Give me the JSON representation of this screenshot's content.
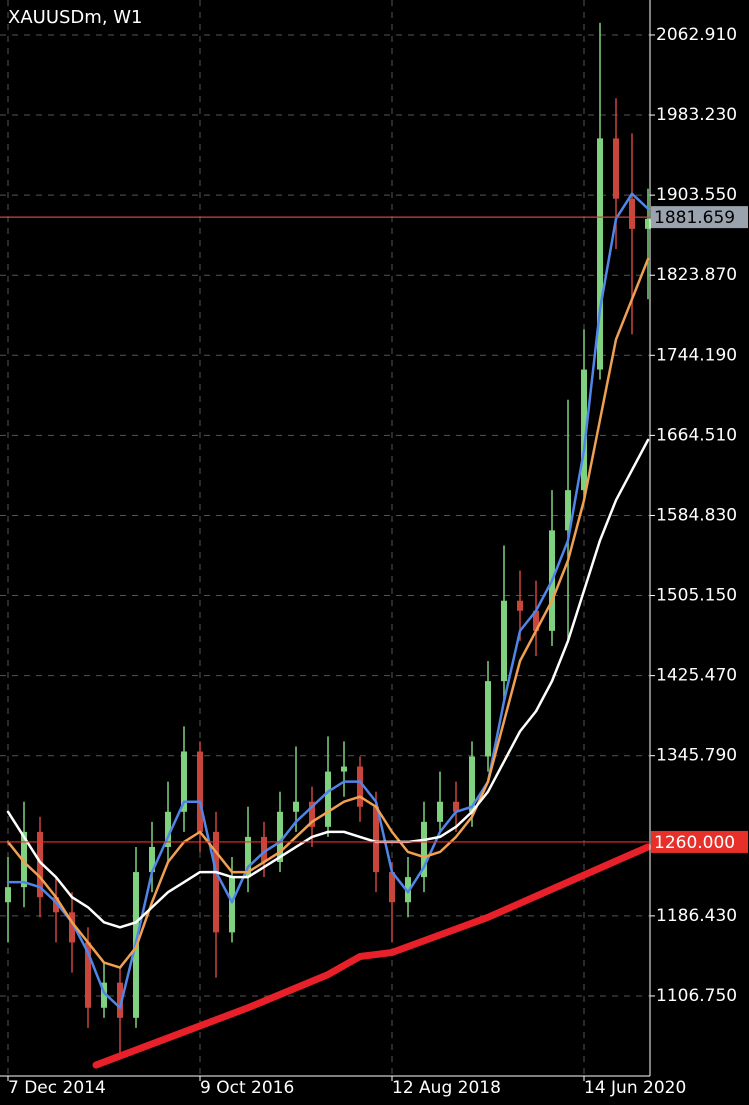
{
  "chart_data": {
    "type": "candlestick",
    "title": "XAUUSDm, W1",
    "x": [
      0,
      8,
      16,
      24,
      32,
      40,
      48,
      56,
      64,
      72,
      80,
      88,
      96,
      104,
      112,
      120,
      128,
      136,
      144,
      152,
      160,
      168,
      176,
      184,
      192,
      200,
      208,
      216,
      224,
      232,
      240,
      248,
      256,
      264,
      272,
      280,
      288,
      296,
      304,
      312,
      320
    ],
    "open": [
      1200,
      1215,
      1270,
      1205,
      1190,
      1160,
      1095,
      1120,
      1085,
      1230,
      1255,
      1290,
      1350,
      1270,
      1170,
      1225,
      1265,
      1240,
      1290,
      1300,
      1275,
      1330,
      1335,
      1295,
      1230,
      1200,
      1225,
      1280,
      1300,
      1290,
      1345,
      1420,
      1500,
      1490,
      1470,
      1570,
      1610,
      1730,
      1960,
      1900,
      1870
    ],
    "high": [
      1245,
      1300,
      1285,
      1225,
      1210,
      1175,
      1140,
      1135,
      1255,
      1280,
      1320,
      1375,
      1360,
      1290,
      1245,
      1295,
      1280,
      1310,
      1355,
      1315,
      1365,
      1360,
      1345,
      1310,
      1240,
      1245,
      1300,
      1330,
      1320,
      1360,
      1440,
      1555,
      1530,
      1520,
      1610,
      1700,
      1770,
      2075,
      2000,
      1965,
      1910
    ],
    "low": [
      1160,
      1195,
      1185,
      1160,
      1130,
      1075,
      1085,
      1050,
      1075,
      1210,
      1240,
      1270,
      1250,
      1125,
      1160,
      1210,
      1225,
      1230,
      1270,
      1255,
      1265,
      1305,
      1280,
      1210,
      1160,
      1185,
      1210,
      1270,
      1270,
      1275,
      1330,
      1400,
      1460,
      1445,
      1455,
      1460,
      1600,
      1720,
      1850,
      1765,
      1800
    ],
    "close": [
      1215,
      1270,
      1205,
      1190,
      1160,
      1095,
      1120,
      1085,
      1230,
      1255,
      1290,
      1350,
      1270,
      1170,
      1225,
      1265,
      1240,
      1290,
      1300,
      1275,
      1330,
      1335,
      1295,
      1230,
      1200,
      1225,
      1280,
      1300,
      1290,
      1345,
      1420,
      1500,
      1490,
      1470,
      1570,
      1610,
      1730,
      1960,
      1900,
      1870,
      1880
    ],
    "up_color": "#7fd07f",
    "down_color": "#c8463c",
    "series": [
      {
        "color": "#4f86e8",
        "values": [
          1220,
          1220,
          1215,
          1200,
          1180,
          1150,
          1110,
          1095,
          1160,
          1230,
          1265,
          1300,
          1300,
          1230,
          1200,
          1235,
          1250,
          1260,
          1280,
          1295,
          1310,
          1320,
          1320,
          1300,
          1230,
          1210,
          1235,
          1270,
          1290,
          1295,
          1320,
          1400,
          1470,
          1490,
          1520,
          1560,
          1650,
          1790,
          1880,
          1905,
          1890
        ]
      },
      {
        "color": "#f0a050",
        "values": [
          1260,
          1240,
          1225,
          1205,
          1180,
          1160,
          1140,
          1135,
          1155,
          1200,
          1240,
          1260,
          1270,
          1250,
          1230,
          1230,
          1240,
          1250,
          1265,
          1280,
          1290,
          1300,
          1305,
          1295,
          1270,
          1250,
          1245,
          1250,
          1265,
          1285,
          1320,
          1380,
          1440,
          1470,
          1500,
          1540,
          1600,
          1680,
          1760,
          1800,
          1840
        ]
      },
      {
        "color": "#ffffff",
        "values": [
          1290,
          1265,
          1240,
          1225,
          1205,
          1195,
          1180,
          1175,
          1180,
          1195,
          1210,
          1220,
          1230,
          1230,
          1225,
          1225,
          1235,
          1245,
          1255,
          1265,
          1270,
          1270,
          1265,
          1260,
          1260,
          1260,
          1262,
          1265,
          1275,
          1290,
          1310,
          1340,
          1370,
          1390,
          1420,
          1460,
          1510,
          1560,
          1600,
          1630,
          1660
        ]
      },
      {
        "color": "#e8202a",
        "x": [
          44,
          80,
          120,
          160,
          176,
          192,
          240,
          280,
          320
        ],
        "values": [
          1038,
          1065,
          1095,
          1128,
          1146,
          1150,
          1185,
          1220,
          1255
        ]
      }
    ],
    "levels": [
      {
        "value": 1881.659,
        "label": "1881.659",
        "color": "#c8463c",
        "label_bg": "#9aa3ad"
      },
      {
        "value": 1260,
        "label": "1260.000",
        "color": "#e8302a",
        "label_bg": "#e8302a"
      }
    ],
    "xlim": [
      -4,
      321
    ],
    "ylim": [
      1028.1,
      2097.7
    ],
    "xticks": [
      {
        "value": 0,
        "label": "7 Dec 2014"
      },
      {
        "value": 96,
        "label": "9 Oct 2016"
      },
      {
        "value": 192,
        "label": "12 Aug 2018"
      },
      {
        "value": 288,
        "label": "14 Jun 2020"
      }
    ],
    "yticks": [
      {
        "value": 2062.91,
        "label": "2062.910"
      },
      {
        "value": 1983.23,
        "label": "1983.230"
      },
      {
        "value": 1903.55,
        "label": "1903.550"
      },
      {
        "value": 1823.87,
        "label": "1823.870"
      },
      {
        "value": 1744.19,
        "label": "1744.190"
      },
      {
        "value": 1664.51,
        "label": "1664.510"
      },
      {
        "value": 1584.83,
        "label": "1584.830"
      },
      {
        "value": 1505.15,
        "label": "1505.150"
      },
      {
        "value": 1425.47,
        "label": "1425.470"
      },
      {
        "value": 1345.79,
        "label": "1345.790"
      },
      {
        "value": 1186.43,
        "label": "1186.430"
      },
      {
        "value": 1106.75,
        "label": "1106.750"
      }
    ],
    "grid": true
  }
}
